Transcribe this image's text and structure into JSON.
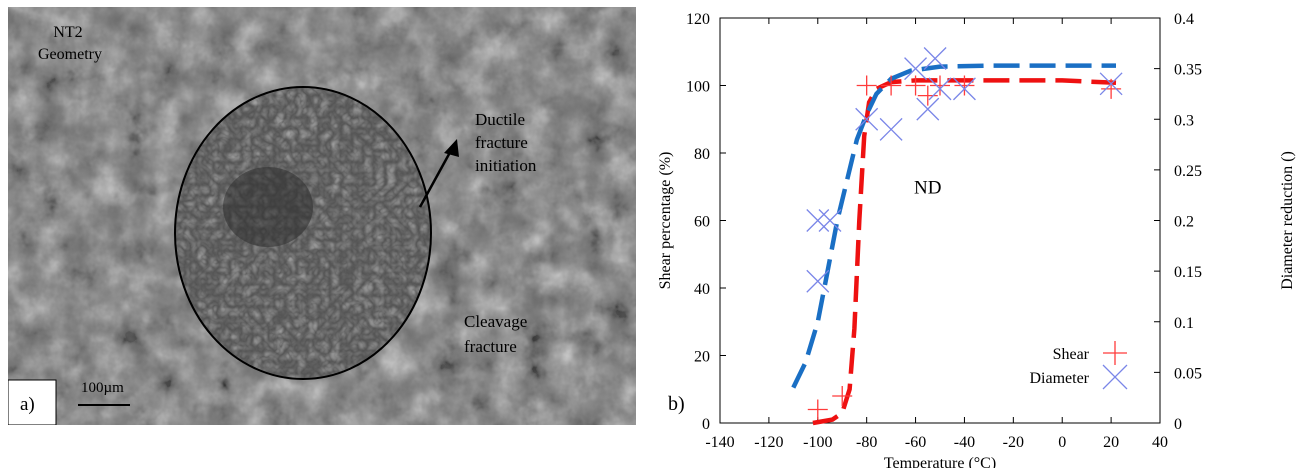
{
  "panel_a": {
    "label": "a)",
    "texts": {
      "specimen": "NT2\nGeometry",
      "ductile": "Ductile\nfracture\ninitiation",
      "cleavage": "Cleavage\nfracture"
    },
    "scale_bar": "100µm"
  },
  "panel_b": {
    "label": "b)"
  },
  "chart_data": {
    "type": "scatter",
    "title": "",
    "annotation": "ND",
    "xlabel": "Temperature (°C)",
    "ylabel": "Shear percentage (%)",
    "y2label": "Diameter reduction ()",
    "xlim": [
      -140,
      40
    ],
    "ylim": [
      0,
      120
    ],
    "y2lim": [
      0,
      0.4
    ],
    "x_ticks": [
      -140,
      -120,
      -100,
      -80,
      -60,
      -40,
      -20,
      0,
      20,
      40
    ],
    "y_ticks": [
      0,
      20,
      40,
      60,
      80,
      100,
      120
    ],
    "y2_ticks": [
      "0",
      "0.05",
      "0.1",
      "0.15",
      "0.2",
      "0.25",
      "0.3",
      "0.35",
      "0.4"
    ],
    "grid": false,
    "legend": "bottom-right",
    "series": [
      {
        "name": "Shear",
        "axis": "left",
        "marker": "plus",
        "color": "#ff3b3b",
        "points": [
          {
            "x": -100,
            "y": 4
          },
          {
            "x": -90,
            "y": 8
          },
          {
            "x": -80,
            "y": 100
          },
          {
            "x": -70,
            "y": 100
          },
          {
            "x": -60,
            "y": 100
          },
          {
            "x": -55,
            "y": 97
          },
          {
            "x": -50,
            "y": 100
          },
          {
            "x": -40,
            "y": 100
          },
          {
            "x": 20,
            "y": 99
          }
        ],
        "fit": [
          {
            "x": -102,
            "y": 0
          },
          {
            "x": -94,
            "y": 1
          },
          {
            "x": -90,
            "y": 3
          },
          {
            "x": -87,
            "y": 10
          },
          {
            "x": -85,
            "y": 28
          },
          {
            "x": -83,
            "y": 60
          },
          {
            "x": -81,
            "y": 85
          },
          {
            "x": -79,
            "y": 95
          },
          {
            "x": -76,
            "y": 99
          },
          {
            "x": -70,
            "y": 101
          },
          {
            "x": -60,
            "y": 101.5
          },
          {
            "x": -40,
            "y": 101.5
          },
          {
            "x": 0,
            "y": 101.5
          },
          {
            "x": 22,
            "y": 100.8
          }
        ],
        "fit_color": "#ee1111"
      },
      {
        "name": "Diameter",
        "axis": "right",
        "marker": "cross",
        "color": "#7a86e8",
        "points": [
          {
            "x": -100,
            "y": 0.2
          },
          {
            "x": -95,
            "y": 0.2
          },
          {
            "x": -100,
            "y": 0.14
          },
          {
            "x": -80,
            "y": 0.3
          },
          {
            "x": -70,
            "y": 0.29
          },
          {
            "x": -60,
            "y": 0.35
          },
          {
            "x": -55,
            "y": 0.31
          },
          {
            "x": -52,
            "y": 0.36
          },
          {
            "x": -50,
            "y": 0.33
          },
          {
            "x": -40,
            "y": 0.33
          },
          {
            "x": 20,
            "y": 0.335
          }
        ],
        "fit": [
          {
            "x": -110,
            "y": 0.035
          },
          {
            "x": -105,
            "y": 0.06
          },
          {
            "x": -100,
            "y": 0.1
          },
          {
            "x": -96,
            "y": 0.15
          },
          {
            "x": -92,
            "y": 0.2
          },
          {
            "x": -88,
            "y": 0.24
          },
          {
            "x": -84,
            "y": 0.28
          },
          {
            "x": -80,
            "y": 0.305
          },
          {
            "x": -76,
            "y": 0.325
          },
          {
            "x": -70,
            "y": 0.34
          },
          {
            "x": -62,
            "y": 0.348
          },
          {
            "x": -50,
            "y": 0.352
          },
          {
            "x": -30,
            "y": 0.353
          },
          {
            "x": 0,
            "y": 0.353
          },
          {
            "x": 22,
            "y": 0.353
          }
        ],
        "fit_color": "#1a6fc4"
      }
    ]
  }
}
